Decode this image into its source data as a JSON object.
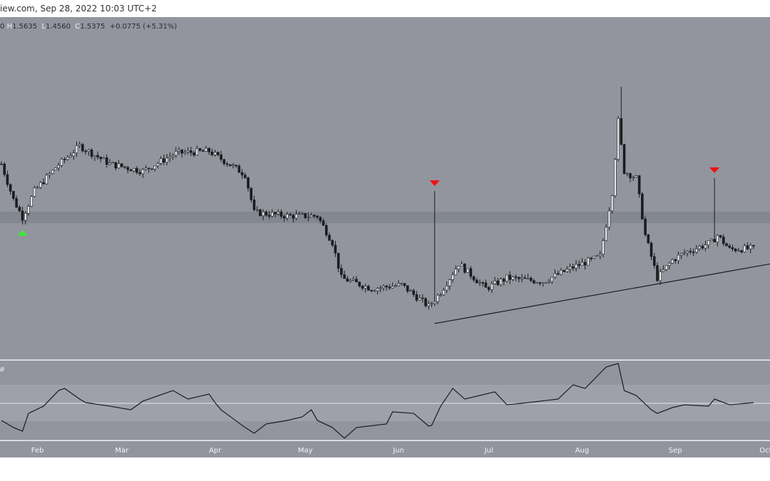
{
  "header": {
    "source_text": "iew.com, Sep 28, 2022 10:03 UTC+2"
  },
  "legend": {
    "o_partial": "0",
    "h_key": "H",
    "h": "1.5635",
    "l_key": "L",
    "l": "1.4560",
    "c_key": "C",
    "c": "1.5375",
    "change": "+0.0775 (+5.31%)"
  },
  "rsi_label": "ø",
  "colors": {
    "bg": "#93959e",
    "zone": "#80838c",
    "rsi_band": "#9ea1aa",
    "line": "#1b1c20",
    "up_marker": "#33ee33",
    "down_marker": "#ee1111"
  },
  "chart_data": {
    "type": "candlestick",
    "start_date": "2022-01-20",
    "price_keypoints": [
      [
        0,
        1.915
      ],
      [
        4,
        1.756
      ],
      [
        7,
        1.677
      ],
      [
        11,
        1.794
      ],
      [
        18,
        1.899
      ],
      [
        26,
        1.995
      ],
      [
        36,
        1.915
      ],
      [
        47,
        1.883
      ],
      [
        58,
        1.963
      ],
      [
        69,
        1.972
      ],
      [
        81,
        1.868
      ],
      [
        84,
        1.699
      ],
      [
        95,
        1.683
      ],
      [
        105,
        1.683
      ],
      [
        110,
        1.565
      ],
      [
        113,
        1.406
      ],
      [
        123,
        1.359
      ],
      [
        133,
        1.375
      ],
      [
        142,
        1.279
      ],
      [
        146,
        1.343
      ],
      [
        152,
        1.47
      ],
      [
        161,
        1.359
      ],
      [
        168,
        1.406
      ],
      [
        180,
        1.39
      ],
      [
        190,
        1.454
      ],
      [
        199,
        1.502
      ],
      [
        203,
        1.788
      ],
      [
        205,
        2.106
      ],
      [
        207,
        1.883
      ],
      [
        211,
        1.852
      ],
      [
        214,
        1.597
      ],
      [
        218,
        1.406
      ],
      [
        223,
        1.486
      ],
      [
        227,
        1.518
      ],
      [
        236,
        1.565
      ],
      [
        238,
        1.597
      ],
      [
        242,
        1.534
      ],
      [
        250,
        1.5375
      ]
    ],
    "notable_wicks": [
      [
        144,
        1.794
      ],
      [
        206,
        2.26
      ],
      [
        237,
        1.852
      ]
    ],
    "support_zone": [
      1.651,
      1.702
    ],
    "trendline": [
      [
        144,
        1.203
      ],
      [
        256,
        1.47
      ]
    ],
    "markers": [
      {
        "day": 7,
        "type": "buy"
      },
      {
        "day": 144,
        "type": "sell"
      },
      {
        "day": 237,
        "type": "sell"
      }
    ],
    "x_ticks": [
      {
        "label": "Feb",
        "day": 12
      },
      {
        "label": "Mar",
        "day": 40
      },
      {
        "label": "Apr",
        "day": 71
      },
      {
        "label": "May",
        "day": 101
      },
      {
        "label": "Jun",
        "day": 132
      },
      {
        "label": "Jul",
        "day": 162
      },
      {
        "label": "Aug",
        "day": 193
      },
      {
        "label": "Sep",
        "day": 224
      },
      {
        "label": "Oct",
        "day": 254
      }
    ],
    "rsi": {
      "levels": [
        30,
        50,
        70
      ],
      "keypoints": [
        [
          0,
          30.8
        ],
        [
          4,
          23
        ],
        [
          7,
          19
        ],
        [
          9,
          38.6
        ],
        [
          14,
          46.5
        ],
        [
          19,
          63.7
        ],
        [
          21,
          66
        ],
        [
          26,
          54.3
        ],
        [
          28,
          50.4
        ],
        [
          36,
          46.5
        ],
        [
          43,
          42.5
        ],
        [
          47,
          52
        ],
        [
          57,
          63.7
        ],
        [
          62,
          54.3
        ],
        [
          69,
          59.8
        ],
        [
          71,
          50.4
        ],
        [
          73,
          42.5
        ],
        [
          81,
          23
        ],
        [
          84,
          16.7
        ],
        [
          88,
          26.9
        ],
        [
          95,
          30.8
        ],
        [
          100,
          34.7
        ],
        [
          103,
          42.5
        ],
        [
          105,
          30.8
        ],
        [
          110,
          23
        ],
        [
          114,
          11.2
        ],
        [
          118,
          23
        ],
        [
          128,
          26.9
        ],
        [
          130,
          40.2
        ],
        [
          137,
          38.6
        ],
        [
          142,
          24.5
        ],
        [
          143,
          25.3
        ],
        [
          146,
          46.5
        ],
        [
          150,
          66
        ],
        [
          154,
          54.3
        ],
        [
          164,
          62.2
        ],
        [
          168,
          48
        ],
        [
          175,
          50.4
        ],
        [
          185,
          54.3
        ],
        [
          190,
          70
        ],
        [
          194,
          66
        ],
        [
          201,
          89.6
        ],
        [
          205,
          93.5
        ],
        [
          207,
          63.7
        ],
        [
          211,
          58.2
        ],
        [
          216,
          42.5
        ],
        [
          218,
          38.6
        ],
        [
          223,
          44.9
        ],
        [
          227,
          48
        ],
        [
          235,
          46.5
        ],
        [
          237,
          54.3
        ],
        [
          242,
          48
        ],
        [
          250,
          50.4
        ]
      ]
    }
  }
}
